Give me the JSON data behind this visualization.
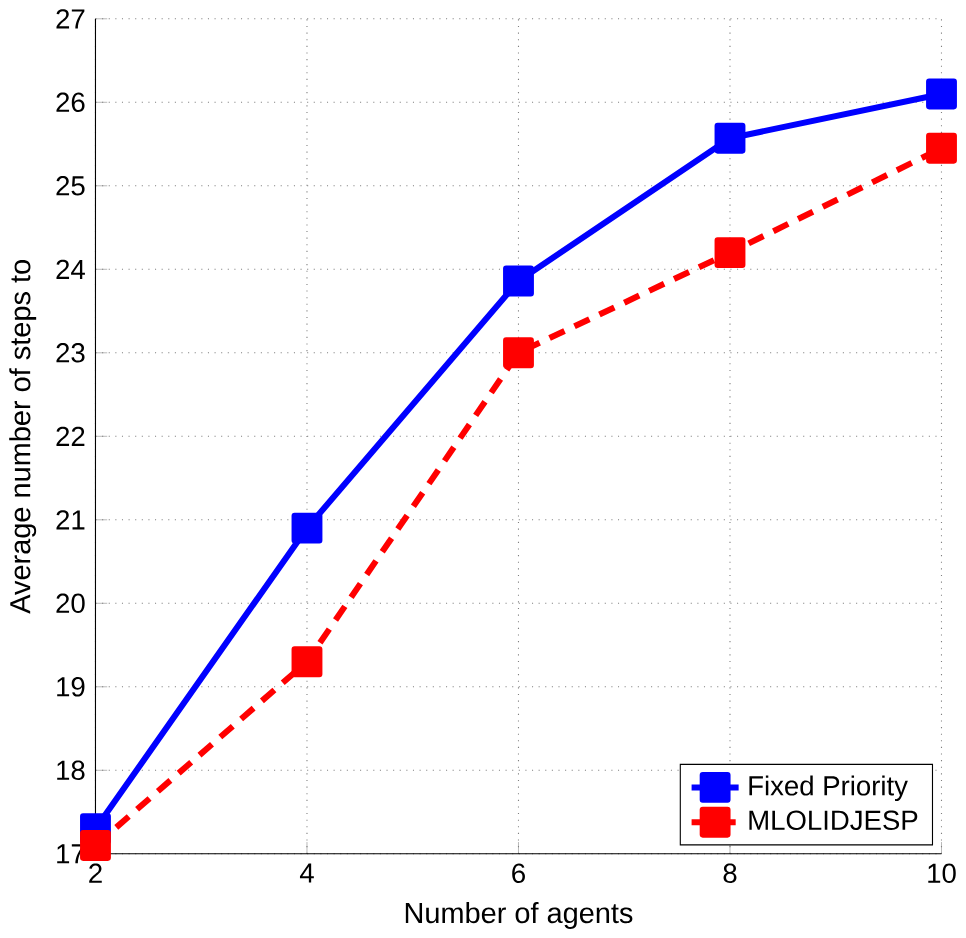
{
  "chart_data": {
    "type": "line",
    "xlabel": "Number of agents",
    "ylabel": "Average number of steps to",
    "x": [
      2,
      4,
      6,
      8,
      10
    ],
    "series": [
      {
        "name": "Fixed Priority",
        "color": "#0000ff",
        "values": [
          17.3,
          20.9,
          23.86,
          25.57,
          26.1
        ],
        "line_style": "solid"
      },
      {
        "name": "MLOLIDJESP",
        "color": "#ff0000",
        "values": [
          17.1,
          19.3,
          23.0,
          24.2,
          25.45
        ],
        "line_style": "dashed"
      }
    ],
    "xlim": [
      2,
      10
    ],
    "ylim": [
      17,
      27
    ],
    "xticks": [
      2,
      4,
      6,
      8,
      10
    ],
    "yticks": [
      17,
      18,
      19,
      20,
      21,
      22,
      23,
      24,
      25,
      26,
      27
    ],
    "grid": true,
    "legend": "bottom right",
    "marker": "square"
  }
}
